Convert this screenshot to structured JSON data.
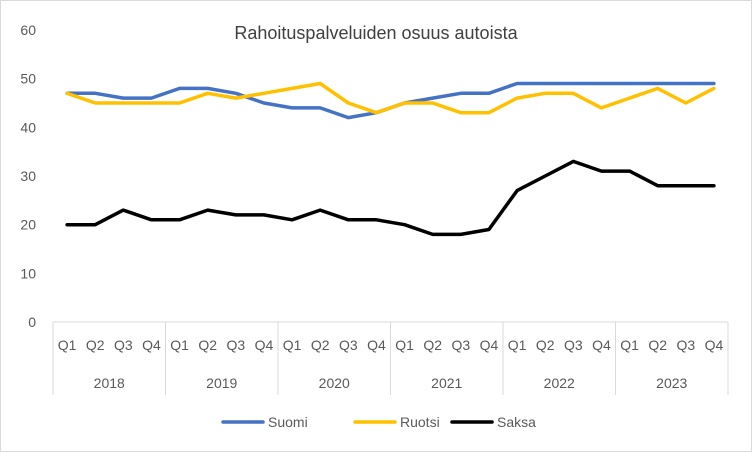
{
  "chart_data": {
    "type": "line",
    "title": "Rahoituspalveluiden  osuus autoista",
    "xlabel": "",
    "ylabel": "",
    "ylim": [
      0,
      60
    ],
    "yticks": [
      0,
      10,
      20,
      30,
      40,
      50,
      60
    ],
    "grid": false,
    "legend": "bottom",
    "quarters": [
      "Q1",
      "Q2",
      "Q3",
      "Q4",
      "Q1",
      "Q2",
      "Q3",
      "Q4",
      "Q1",
      "Q2",
      "Q3",
      "Q4",
      "Q1",
      "Q2",
      "Q3",
      "Q4",
      "Q1",
      "Q2",
      "Q3",
      "Q4",
      "Q1",
      "Q2",
      "Q3",
      "Q4"
    ],
    "years": [
      "2018",
      "2019",
      "2020",
      "2021",
      "2022",
      "2023"
    ],
    "series": [
      {
        "name": "Suomi",
        "color": "#4472C4",
        "values": [
          47,
          47,
          46,
          46,
          48,
          48,
          47,
          45,
          44,
          44,
          42,
          43,
          45,
          46,
          47,
          47,
          49,
          49,
          49,
          49,
          49,
          49,
          49,
          49
        ]
      },
      {
        "name": "Ruotsi",
        "color": "#FFC000",
        "values": [
          47,
          45,
          45,
          45,
          45,
          47,
          46,
          47,
          48,
          49,
          45,
          43,
          45,
          45,
          43,
          43,
          46,
          47,
          47,
          44,
          46,
          48,
          45,
          48
        ]
      },
      {
        "name": "Saksa",
        "color": "#000000",
        "values": [
          20,
          20,
          23,
          21,
          21,
          23,
          22,
          22,
          21,
          23,
          21,
          21,
          20,
          18,
          18,
          19,
          27,
          30,
          33,
          31,
          31,
          28,
          28,
          28
        ]
      }
    ]
  }
}
